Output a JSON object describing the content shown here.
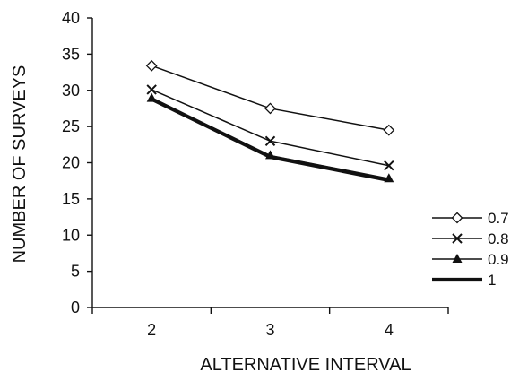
{
  "chart_data": {
    "type": "line",
    "title": "",
    "xlabel": "ALTERNATIVE INTERVAL",
    "ylabel": "NUMBER OF SURVEYS",
    "x": [
      2,
      3,
      4
    ],
    "x_tick_labels": [
      "2",
      "3",
      "4"
    ],
    "ylim": [
      0,
      40
    ],
    "y_ticks": [
      0,
      5,
      10,
      15,
      20,
      25,
      30,
      35,
      40
    ],
    "y_tick_labels": [
      "0",
      "5",
      "10",
      "15",
      "20",
      "25",
      "30",
      "35",
      "40"
    ],
    "grid": false,
    "legend_position": "bottom-right",
    "series": [
      {
        "name": "0.7",
        "values": [
          33.4,
          27.5,
          24.5
        ],
        "marker": "diamond-open",
        "color": "#111111"
      },
      {
        "name": "0.8",
        "values": [
          30.1,
          23.0,
          19.6
        ],
        "marker": "x",
        "color": "#111111"
      },
      {
        "name": "0.9",
        "values": [
          28.9,
          21.0,
          17.8
        ],
        "marker": "triangle-filled",
        "color": "#111111"
      },
      {
        "name": "1",
        "values": [
          28.8,
          20.8,
          17.6
        ],
        "marker": "none",
        "color": "#111111",
        "thick": true
      }
    ]
  }
}
